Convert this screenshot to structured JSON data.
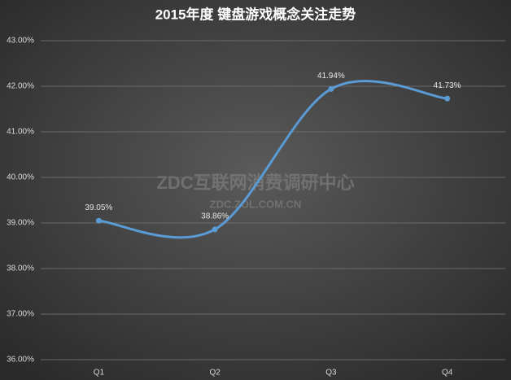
{
  "chart_data": {
    "type": "line",
    "title": "2015年度 键盘游戏概念关注走势",
    "categories": [
      "Q1",
      "Q2",
      "Q3",
      "Q4"
    ],
    "values": [
      39.05,
      38.86,
      41.94,
      41.73
    ],
    "value_labels": [
      "39.05%",
      "38.86%",
      "41.94%",
      "41.73%"
    ],
    "color": "#5b9bd5",
    "smooth": true,
    "grid": true,
    "ylim": [
      36,
      43
    ],
    "yticks": [
      {
        "value": 36,
        "label": "36.00%"
      },
      {
        "value": 37,
        "label": "37.00%"
      },
      {
        "value": 38,
        "label": "38.00%"
      },
      {
        "value": 39,
        "label": "39.00%"
      },
      {
        "value": 40,
        "label": "40.00%"
      },
      {
        "value": 41,
        "label": "41.00%"
      },
      {
        "value": 42,
        "label": "42.00%"
      },
      {
        "value": 43,
        "label": "43.00%"
      }
    ],
    "annotations": [
      "ZDC互联网消费调研中心",
      "ZDC.ZOL.COM.CN"
    ]
  }
}
